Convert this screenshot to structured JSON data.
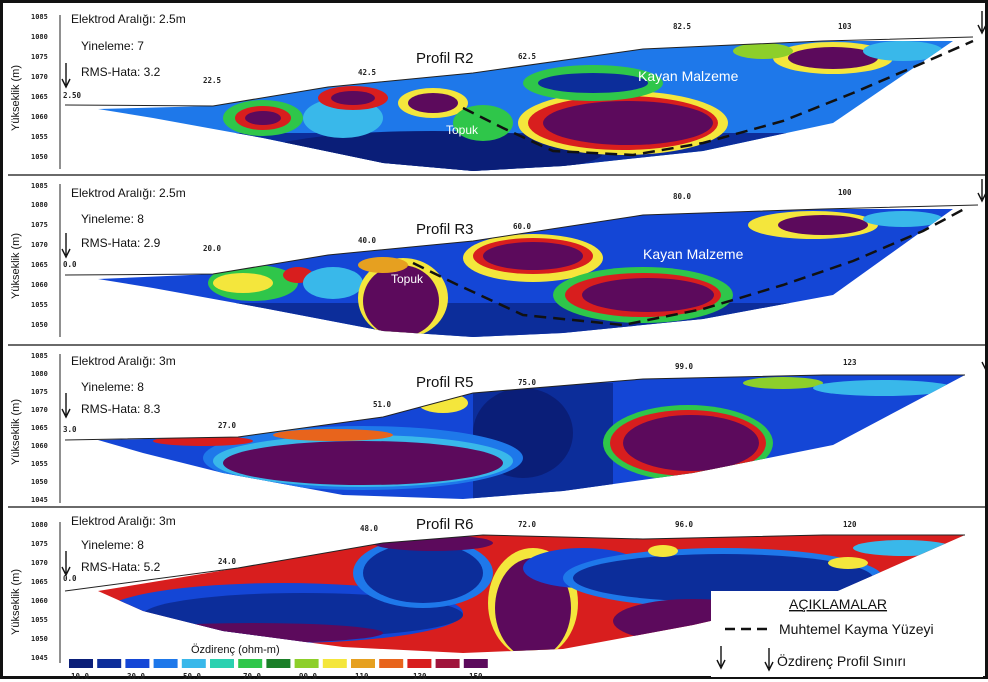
{
  "colors": {
    "scale": [
      "#0a1e78",
      "#0c2d9a",
      "#1446d6",
      "#1e78ea",
      "#39b8ea",
      "#2bd1b0",
      "#2fc64a",
      "#1b7f28",
      "#8dcf2a",
      "#f4e63c",
      "#e6a020",
      "#e8641c",
      "#d81e1e",
      "#a0143c",
      "#5c0a5c"
    ],
    "slip_line": "#111111"
  },
  "profiles": [
    {
      "title": "Profil R2",
      "electrode": "Elektrod Aralığı: 2.5m",
      "iteration": "Yineleme: 7",
      "rms": "RMS-Hata: 3.2",
      "yticks": [
        "1085",
        "1080",
        "1075",
        "1070",
        "1065",
        "1060",
        "1055",
        "1050"
      ],
      "xticks": [
        "2.50",
        "22.5",
        "42.5",
        "62.5",
        "82.5",
        "103"
      ],
      "notes": [
        "Kayan Malzeme",
        "Topuk"
      ]
    },
    {
      "title": "Profil R3",
      "electrode": "Elektrod Aralığı: 2.5m",
      "iteration": "Yineleme: 8",
      "rms": "RMS-Hata: 2.9",
      "yticks": [
        "1085",
        "1080",
        "1075",
        "1070",
        "1065",
        "1060",
        "1055",
        "1050"
      ],
      "xticks": [
        "0.0",
        "20.0",
        "40.0",
        "60.0",
        "80.0",
        "100"
      ],
      "notes": [
        "Kayan Malzeme",
        "Topuk"
      ]
    },
    {
      "title": "Profil R5",
      "electrode": "Elektrod Aralığı: 3m",
      "iteration": "Yineleme: 8",
      "rms": "RMS-Hata: 8.3",
      "yticks": [
        "1085",
        "1080",
        "1075",
        "1070",
        "1065",
        "1060",
        "1055",
        "1050",
        "1045"
      ],
      "xticks": [
        "3.0",
        "27.0",
        "51.0",
        "75.0",
        "99.0",
        "123"
      ],
      "notes": []
    },
    {
      "title": "Profil R6",
      "electrode": "Elektrod Aralığı: 3m",
      "iteration": "Yineleme: 8",
      "rms": "RMS-Hata: 5.2",
      "yticks": [
        "1080",
        "1075",
        "1070",
        "1065",
        "1060",
        "1055",
        "1050",
        "1045"
      ],
      "xticks": [
        "0.0",
        "24.0",
        "48.0",
        "72.0",
        "96.0",
        "120"
      ],
      "notes": []
    }
  ],
  "ylabel": "Yükseklik (m)",
  "scale": {
    "title": "Özdirenç (ohm-m)",
    "labels": [
      "10.0",
      "30.0",
      "50.0",
      "70.0",
      "90.0",
      "110",
      "130",
      "150"
    ]
  },
  "legend": {
    "title": "AÇIKLAMALAR",
    "slip": "Muhtemel Kayma Yüzeyi",
    "boundary": "Özdirenç Profil Sınırı"
  }
}
